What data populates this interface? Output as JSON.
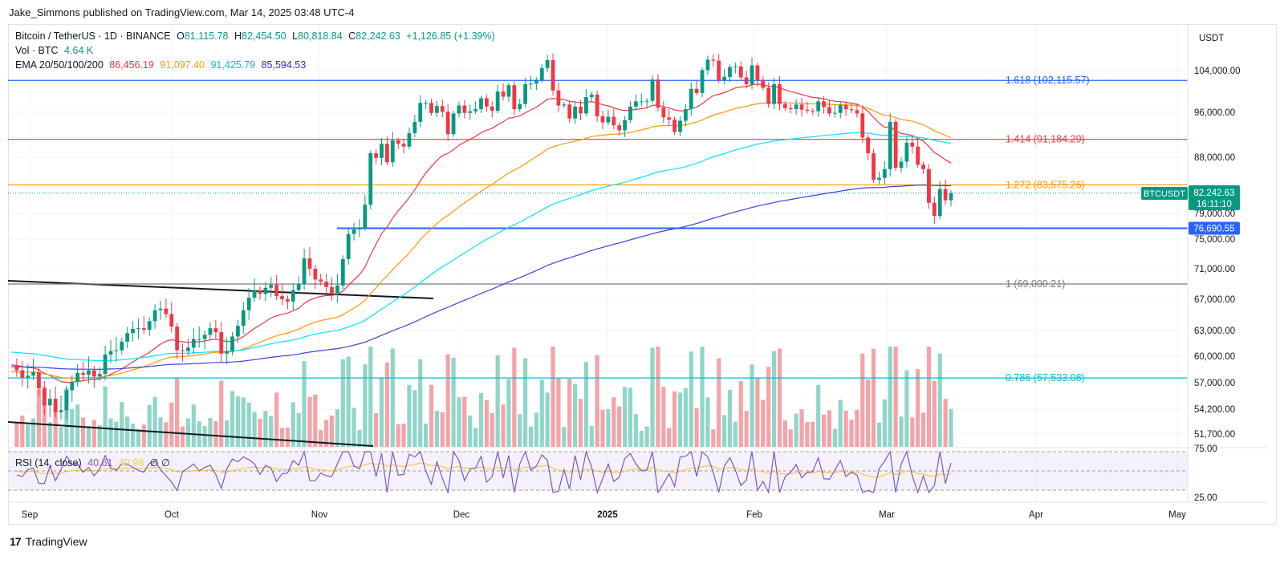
{
  "header": {
    "published": "Jake_Simmons published on TradingView.com, Mar 14, 2025 03:48 UTC-4"
  },
  "legend": {
    "symbol": "Bitcoin / TetherUS · 1D · BINANCE",
    "ohlc": {
      "o_key": "O",
      "o": "81,115.78",
      "h_key": "H",
      "h": "82,454.50",
      "l_key": "L",
      "l": "80,818.84",
      "c_key": "C",
      "c": "82,242.63",
      "change": "+1,126.85 (+1.39%)"
    },
    "volume_label": "Vol · BTC",
    "volume_value": "4.64 K",
    "ema_label": "EMA 20/50/100/200",
    "ema_values": [
      "86,456.19",
      "91,097.40",
      "91,425.79",
      "85,594.53"
    ],
    "rsi_label": "RSI (14, close)",
    "rsi_value": "40.61",
    "rsi_ma_value": "40.98",
    "rsi_extra": "∅ ∅"
  },
  "footer": {
    "brand": "TradingView"
  },
  "colors": {
    "up": "#089981",
    "down": "#f23645",
    "ema20": "#f23645",
    "ema50": "#ff9800",
    "ema100": "#00e5ff",
    "ema200": "#3f3fdf",
    "fib1618": "#2962ff",
    "fib1414": "#f23645",
    "fib1272": "#ff9800",
    "fib1": "#787b86",
    "fib0786": "#00bcd4",
    "support": "#2962ff"
  },
  "chart_data": {
    "type": "candlestick",
    "symbol": "BTCUSDT",
    "timeframe": "1D",
    "currency": "USDT",
    "price_axis_ticks": [
      "104,000.00",
      "96,000.00",
      "88,000.00",
      "79,000.00",
      "75,000.00",
      "71,000.00",
      "67,000.00",
      "63,000.00",
      "60,000.00",
      "57,000.00",
      "54,200.00",
      "51,700.00"
    ],
    "time_axis_ticks": [
      "Sep",
      "Oct",
      "Nov",
      "Dec",
      "2025",
      "Feb",
      "Mar",
      "Apr",
      "May"
    ],
    "current_price": {
      "symbol": "BTCUSDT",
      "price": "82,242.63",
      "countdown": "16:11:10"
    },
    "support_level": {
      "price": 76690.55,
      "label": "76,690.55"
    },
    "fib_levels": [
      {
        "label": "1.618 (102,115.57)",
        "price": 102115.57
      },
      {
        "label": "1.414 (91,184.29)",
        "price": 91184.29
      },
      {
        "label": "1.272 (83,575.26)",
        "price": 83575.26
      },
      {
        "label": "1 (69,000.21)",
        "price": 69000.21
      },
      {
        "label": "0.786 (57,533.08)",
        "price": 57533.08
      }
    ],
    "rsi_levels": [
      "75.00",
      "25.00"
    ],
    "close_series_approx": [
      59000,
      58400,
      57600,
      57800,
      58200,
      56400,
      54600,
      55300,
      53900,
      54100,
      56200,
      57100,
      58100,
      57900,
      58400,
      57700,
      58000,
      60200,
      60600,
      60700,
      61700,
      62700,
      63200,
      63300,
      63100,
      64200,
      65600,
      65800,
      65100,
      63500,
      60700,
      60600,
      61000,
      62000,
      62000,
      62500,
      63300,
      62800,
      60300,
      60600,
      62300,
      63600,
      65600,
      67200,
      68200,
      67700,
      68500,
      68900,
      67400,
      67000,
      66700,
      68200,
      69000,
      72400,
      71000,
      69600,
      69300,
      68600,
      67800,
      68800,
      72300,
      75800,
      76500,
      76800,
      80400,
      88700,
      87900,
      90400,
      87200,
      91000,
      90400,
      89900,
      92300,
      94300,
      97800,
      97800,
      95900,
      97200,
      96100,
      92100,
      95800,
      97300,
      95900,
      96200,
      96600,
      98700,
      97100,
      96300,
      100000,
      99000,
      101200,
      96600,
      97600,
      101400,
      101500,
      102200,
      104500,
      106000,
      100200,
      97300,
      97500,
      94900,
      97100,
      95800,
      98900,
      99400,
      95300,
      94200,
      95200,
      93700,
      92800,
      94600,
      97100,
      98100,
      98100,
      98200,
      102300,
      96900,
      95100,
      94700,
      92500,
      94500,
      96600,
      100500,
      99700,
      104100,
      106100,
      105900,
      102100,
      102800,
      104700,
      104800,
      102700,
      101400,
      105000,
      102200,
      100700,
      97600,
      101400,
      97600,
      96800,
      96600,
      97500,
      96500,
      96300,
      96200,
      98100,
      97000,
      95800,
      95900,
      97400,
      96600,
      96400,
      95800,
      91500,
      88700,
      84400,
      84700,
      86100,
      94300,
      86300,
      87300,
      90600,
      89900,
      86800,
      86100,
      80700,
      78600,
      82900,
      81100,
      82250
    ]
  }
}
